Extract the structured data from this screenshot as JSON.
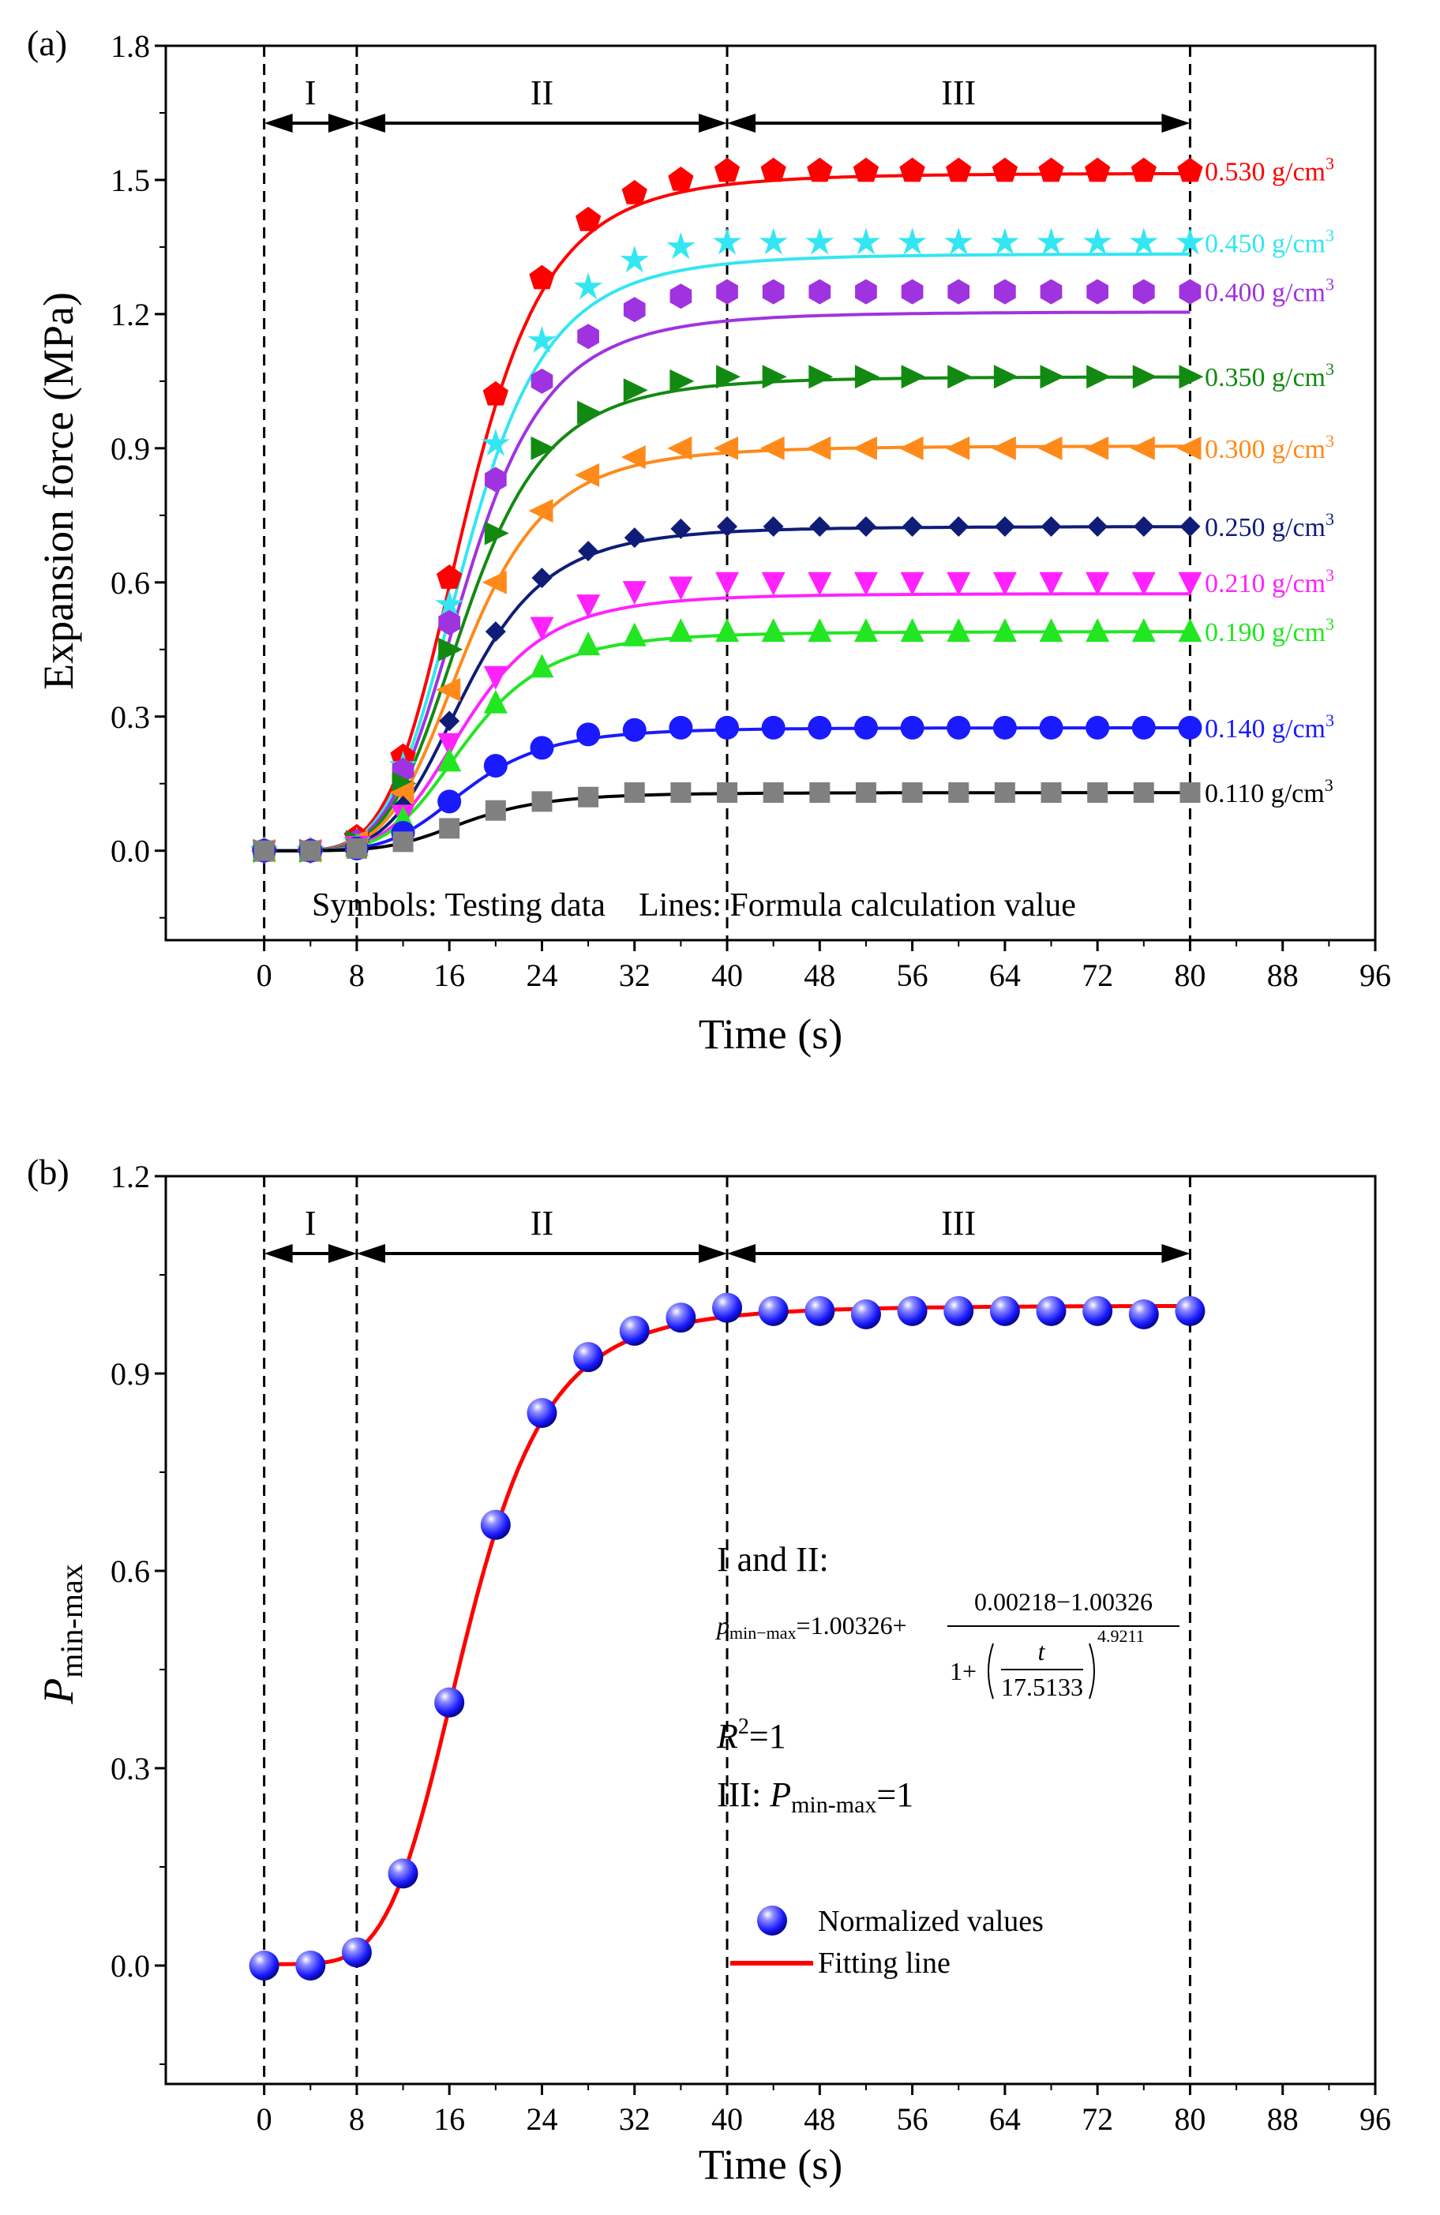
{
  "chart_data": [
    {
      "type": "line",
      "panel_label": "(a)",
      "xlabel": "Time (s)",
      "ylabel": "Expansion force (MPa)",
      "xlim": [
        -8.5,
        96
      ],
      "ylim": [
        -0.2,
        1.8
      ],
      "xticks": [
        0,
        8,
        16,
        24,
        32,
        40,
        48,
        56,
        64,
        72,
        80,
        88,
        96
      ],
      "yticks": [
        0.0,
        0.3,
        0.6,
        0.9,
        1.2,
        1.5,
        1.8
      ],
      "ytick_labels": [
        "0.0",
        "0.3",
        "0.6",
        "0.9",
        "1.2",
        "1.5",
        "1.8"
      ],
      "stage_boundaries": [
        0,
        8,
        40,
        80
      ],
      "stages": [
        {
          "label": "I",
          "from": 0,
          "to": 8
        },
        {
          "label": "II",
          "from": 8,
          "to": 40
        },
        {
          "label": "III",
          "from": 40,
          "to": 80
        }
      ],
      "annotation": "Symbols: Testing data    Lines: Formula calculation value",
      "x": [
        0,
        4,
        8,
        12,
        16,
        20,
        24,
        28,
        32,
        36,
        40,
        44,
        48,
        52,
        56,
        60,
        64,
        68,
        72,
        76,
        80
      ],
      "series": [
        {
          "name": "0.530 g/cm3",
          "label_text": "0.530 g/cm",
          "label_sup": "3",
          "color": "#ff0000",
          "marker": "pentagon",
          "fit_plateau": 1.515,
          "values": [
            0,
            0,
            0.03,
            0.21,
            0.61,
            1.02,
            1.28,
            1.41,
            1.47,
            1.5,
            1.52,
            1.52,
            1.52,
            1.52,
            1.52,
            1.52,
            1.52,
            1.52,
            1.52,
            1.52,
            1.52
          ]
        },
        {
          "name": "0.450 g/cm3",
          "label_text": "0.450 g/cm",
          "label_sup": "3",
          "color": "#33e6f2",
          "marker": "star",
          "fit_plateau": 1.335,
          "values": [
            0,
            0,
            0.02,
            0.19,
            0.55,
            0.91,
            1.14,
            1.26,
            1.32,
            1.35,
            1.36,
            1.36,
            1.36,
            1.36,
            1.36,
            1.36,
            1.36,
            1.36,
            1.36,
            1.36,
            1.36
          ]
        },
        {
          "name": "0.400 g/cm3",
          "label_text": "0.400 g/cm",
          "label_sup": "3",
          "color": "#a033e0",
          "marker": "hexagon",
          "fit_plateau": 1.205,
          "values": [
            0,
            0,
            0.02,
            0.18,
            0.51,
            0.83,
            1.05,
            1.15,
            1.21,
            1.24,
            1.25,
            1.25,
            1.25,
            1.25,
            1.25,
            1.25,
            1.25,
            1.25,
            1.25,
            1.25,
            1.25
          ]
        },
        {
          "name": "0.350 g/cm3",
          "label_text": "0.350 g/cm",
          "label_sup": "3",
          "color": "#128a12",
          "marker": "triangle-right",
          "fit_plateau": 1.06,
          "values": [
            0,
            0,
            0.02,
            0.15,
            0.45,
            0.71,
            0.9,
            0.98,
            1.03,
            1.05,
            1.06,
            1.06,
            1.06,
            1.06,
            1.06,
            1.06,
            1.06,
            1.06,
            1.06,
            1.06,
            1.06
          ]
        },
        {
          "name": "0.300 g/cm3",
          "label_text": "0.300 g/cm",
          "label_sup": "3",
          "color": "#ff8a1a",
          "marker": "triangle-left",
          "fit_plateau": 0.905,
          "values": [
            0,
            0,
            0.02,
            0.13,
            0.36,
            0.6,
            0.76,
            0.84,
            0.88,
            0.9,
            0.9,
            0.9,
            0.9,
            0.9,
            0.9,
            0.9,
            0.9,
            0.9,
            0.9,
            0.9,
            0.9
          ]
        },
        {
          "name": "0.250 g/cm3",
          "label_text": "0.250 g/cm",
          "label_sup": "3",
          "color": "#0f1d78",
          "marker": "diamond",
          "fit_plateau": 0.725,
          "values": [
            0,
            0,
            0.01,
            0.1,
            0.29,
            0.49,
            0.61,
            0.67,
            0.7,
            0.72,
            0.725,
            0.725,
            0.725,
            0.725,
            0.725,
            0.725,
            0.725,
            0.725,
            0.725,
            0.725,
            0.725
          ]
        },
        {
          "name": "0.210 g/cm3",
          "label_text": "0.210 g/cm",
          "label_sup": "3",
          "color": "#ff22ff",
          "marker": "triangle-down",
          "fit_plateau": 0.575,
          "values": [
            0,
            0,
            0.01,
            0.08,
            0.24,
            0.39,
            0.5,
            0.55,
            0.58,
            0.59,
            0.6,
            0.6,
            0.6,
            0.6,
            0.6,
            0.6,
            0.6,
            0.6,
            0.6,
            0.6,
            0.6
          ]
        },
        {
          "name": "0.190 g/cm3",
          "label_text": "0.190 g/cm",
          "label_sup": "3",
          "color": "#22e622",
          "marker": "triangle-up",
          "fit_plateau": 0.49,
          "values": [
            0,
            0,
            0.01,
            0.07,
            0.2,
            0.33,
            0.41,
            0.46,
            0.48,
            0.49,
            0.49,
            0.49,
            0.49,
            0.49,
            0.49,
            0.49,
            0.49,
            0.49,
            0.49,
            0.49,
            0.49
          ]
        },
        {
          "name": "0.140 g/cm3",
          "label_text": "0.140 g/cm",
          "label_sup": "3",
          "color": "#1a1aff",
          "marker": "circle",
          "fit_plateau": 0.275,
          "values": [
            0,
            0,
            0.005,
            0.04,
            0.11,
            0.19,
            0.23,
            0.26,
            0.27,
            0.275,
            0.275,
            0.275,
            0.275,
            0.275,
            0.275,
            0.275,
            0.275,
            0.275,
            0.275,
            0.275,
            0.275
          ]
        },
        {
          "name": "0.110 g/cm3",
          "label_text": "0.110 g/cm",
          "label_sup": "3",
          "color": "#808080",
          "line_color": "#000000",
          "label_color": "#000000",
          "marker": "square",
          "fit_plateau": 0.13,
          "values": [
            0,
            0,
            0.005,
            0.02,
            0.05,
            0.09,
            0.11,
            0.12,
            0.13,
            0.13,
            0.13,
            0.13,
            0.13,
            0.13,
            0.13,
            0.13,
            0.13,
            0.13,
            0.13,
            0.13,
            0.13
          ]
        }
      ]
    },
    {
      "type": "scatter",
      "panel_label": "(b)",
      "xlabel": "Time (s)",
      "ylabel_main": "P",
      "ylabel_sub": "min-max",
      "xlim": [
        -8.5,
        96
      ],
      "ylim": [
        -0.18,
        1.2
      ],
      "xticks": [
        0,
        8,
        16,
        24,
        32,
        40,
        48,
        56,
        64,
        72,
        80,
        88,
        96
      ],
      "yticks": [
        0.0,
        0.3,
        0.6,
        0.9,
        1.2
      ],
      "ytick_labels": [
        "0.0",
        "0.3",
        "0.6",
        "0.9",
        "1.2"
      ],
      "stage_boundaries": [
        0,
        8,
        40,
        80
      ],
      "stages": [
        {
          "label": "I",
          "from": 0,
          "to": 8
        },
        {
          "label": "II",
          "from": 8,
          "to": 40
        },
        {
          "label": "III",
          "from": 40,
          "to": 80
        }
      ],
      "series": [
        {
          "name": "Normalized values",
          "color": "#1a1aff",
          "x": [
            0,
            4,
            8,
            12,
            16,
            20,
            24,
            28,
            32,
            36,
            40,
            44,
            48,
            52,
            56,
            60,
            64,
            68,
            72,
            76,
            80
          ],
          "values": [
            0,
            0,
            0.02,
            0.14,
            0.4,
            0.67,
            0.84,
            0.925,
            0.965,
            0.985,
            1.0,
            0.995,
            0.995,
            0.99,
            0.995,
            0.995,
            0.995,
            0.995,
            0.995,
            0.99,
            0.995
          ]
        },
        {
          "name": "Fitting line",
          "color": "#ff0000",
          "type": "line",
          "fit": {
            "A2": 1.00326,
            "A1": 0.00218,
            "x0": 17.5133,
            "p": 4.9211
          }
        }
      ],
      "equation": {
        "heading": "I and II:",
        "lhs_main": "p",
        "lhs_sub": "min−max",
        "rhs_lead": "=1.00326+",
        "numerator": "0.00218−1.00326",
        "den_lead": "1+",
        "den_num": "t",
        "den_den": "17.5133",
        "exponent": "4.9211",
        "r2_main": "R",
        "r2_sup": "2",
        "r2_tail": "=1",
        "stage3_lead": "III: ",
        "stage3_main": "P",
        "stage3_sub": "min-max",
        "stage3_tail": "=1"
      }
    }
  ]
}
